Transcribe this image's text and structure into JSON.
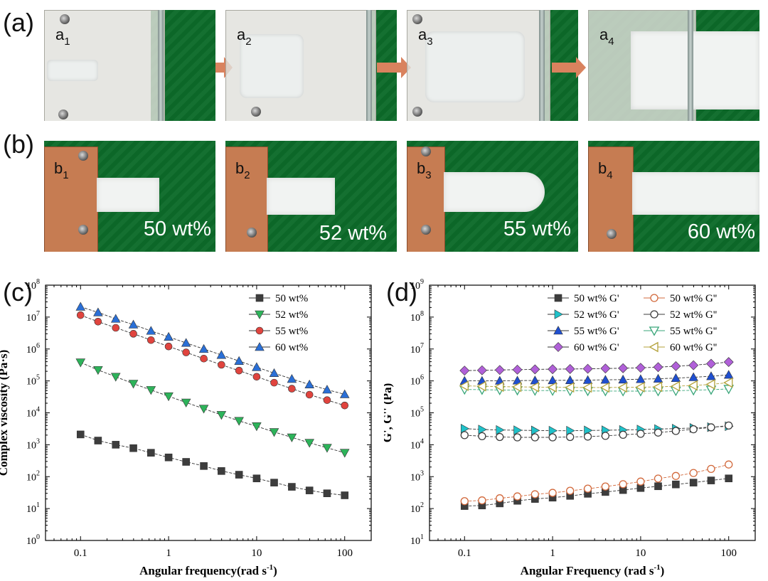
{
  "figure": {
    "panel_a_label": "(a)",
    "panel_b_label": "(b)",
    "panel_c_label": "(c)",
    "panel_d_label": "(d)"
  },
  "row_a": {
    "photos": [
      {
        "label": "a",
        "index": "1"
      },
      {
        "label": "a",
        "index": "2"
      },
      {
        "label": "a",
        "index": "3"
      },
      {
        "label": "a",
        "index": "4"
      }
    ]
  },
  "row_b": {
    "photos": [
      {
        "label": "b",
        "index": "1",
        "wt": "50 wt%"
      },
      {
        "label": "b",
        "index": "2",
        "wt": "52 wt%"
      },
      {
        "label": "b",
        "index": "3",
        "wt": "55 wt%"
      },
      {
        "label": "b",
        "index": "4",
        "wt": "60 wt%"
      }
    ]
  },
  "colors": {
    "black": "#3d3d3d",
    "green": "#2db35a",
    "red": "#e0443e",
    "blue": "#2a6fd6",
    "cyan": "#1fc1c9",
    "darkblue": "#1f4fd0",
    "purple": "#b060d8",
    "orange": "#d2693c",
    "olive": "#b3a13a",
    "seagreen": "#3aa67a",
    "arrow": "#d9825e"
  },
  "chart_data": [
    {
      "type": "scatter",
      "title": "",
      "xlabel": "Angular frequency(rad s",
      "xlabel_sup": "-1",
      "xlabel_end": ")",
      "ylabel": "Complex viscosity (Pa·s)",
      "xscale": "log",
      "yscale": "log",
      "xlim": [
        0.04,
        200
      ],
      "ylim": [
        1,
        100000000
      ],
      "x_ticks": [
        "0.1",
        "1",
        "10",
        "100"
      ],
      "y_ticks_exp": [
        "0",
        "1",
        "2",
        "3",
        "4",
        "5",
        "6",
        "7",
        "8"
      ],
      "legend_position": "top-right",
      "x": [
        0.1,
        0.158,
        0.251,
        0.398,
        0.631,
        1,
        1.58,
        2.51,
        3.98,
        6.31,
        10,
        15.8,
        25.1,
        39.8,
        63.1,
        100
      ],
      "series": [
        {
          "name": "50 wt%",
          "marker": "square",
          "filled": true,
          "color": "#3d3d3d",
          "values": [
            2100,
            1350,
            1000,
            780,
            560,
            400,
            290,
            215,
            150,
            115,
            88,
            65,
            48,
            37,
            30,
            26
          ]
        },
        {
          "name": "52 wt%",
          "marker": "triangle-down",
          "filled": true,
          "color": "#2db35a",
          "values": [
            380000,
            220000,
            135000,
            82000,
            52000,
            33000,
            21000,
            13500,
            8600,
            5600,
            3800,
            2500,
            1700,
            1150,
            800,
            560
          ]
        },
        {
          "name": "55 wt%",
          "marker": "circle",
          "filled": true,
          "color": "#e0443e",
          "values": [
            11500000,
            7200000,
            4600000,
            3000000,
            1900000,
            1200000,
            780000,
            500000,
            320000,
            210000,
            135000,
            88000,
            57000,
            37000,
            25000,
            17000
          ]
        },
        {
          "name": "60 wt%",
          "marker": "triangle-up",
          "filled": true,
          "color": "#2a6fd6",
          "values": [
            21000000,
            14000000,
            8800000,
            5800000,
            3700000,
            2400000,
            1550000,
            1000000,
            650000,
            420000,
            270000,
            175000,
            115000,
            77000,
            53000,
            38000
          ]
        }
      ]
    },
    {
      "type": "scatter",
      "title": "",
      "xlabel": "Angular Frequency (rad s",
      "xlabel_sup": "-1",
      "xlabel_end": ")",
      "ylabel": "G', G'' (Pa)",
      "xscale": "log",
      "yscale": "log",
      "xlim": [
        0.04,
        200
      ],
      "ylim": [
        10,
        1000000000
      ],
      "x_ticks": [
        "0.1",
        "1",
        "10",
        "100"
      ],
      "y_ticks_exp": [
        "1",
        "2",
        "3",
        "4",
        "5",
        "6",
        "7",
        "8",
        "9"
      ],
      "legend_position": "top-right",
      "x": [
        0.1,
        0.158,
        0.251,
        0.398,
        0.631,
        1,
        1.58,
        2.51,
        3.98,
        6.31,
        10,
        15.8,
        25.1,
        39.8,
        63.1,
        100
      ],
      "series": [
        {
          "name": "50 wt% G'",
          "marker": "square",
          "filled": true,
          "color": "#3d3d3d",
          "values": [
            120,
            125,
            145,
            175,
            200,
            220,
            250,
            290,
            330,
            380,
            440,
            500,
            570,
            650,
            760,
            880
          ]
        },
        {
          "name": "50 wt% G''",
          "marker": "circle",
          "filled": false,
          "color": "#d2693c",
          "values": [
            170,
            180,
            210,
            240,
            280,
            310,
            360,
            420,
            490,
            580,
            700,
            870,
            1050,
            1300,
            1750,
            2400
          ]
        },
        {
          "name": "52 wt% G'",
          "marker": "triangle-right",
          "filled": true,
          "color": "#1fc1c9",
          "values": [
            32000,
            30000,
            29000,
            28500,
            28000,
            27500,
            27500,
            28000,
            28500,
            29000,
            30000,
            31000,
            32000,
            33500,
            35500,
            38000
          ]
        },
        {
          "name": "52 wt% G''",
          "marker": "circle",
          "filled": false,
          "color": "#3d3d3d",
          "values": [
            20000,
            18500,
            17500,
            17000,
            17000,
            17000,
            17500,
            18000,
            19000,
            20500,
            22000,
            24000,
            27000,
            30500,
            35000,
            40000
          ]
        },
        {
          "name": "55 wt% G'",
          "marker": "triangle-up",
          "filled": true,
          "color": "#1f4fd0",
          "values": [
            1000000,
            1000000,
            1010000,
            1020000,
            1030000,
            1040000,
            1050000,
            1060000,
            1080000,
            1100000,
            1130000,
            1170000,
            1220000,
            1300000,
            1400000,
            1550000
          ]
        },
        {
          "name": "55 wt% G''",
          "marker": "triangle-down",
          "filled": false,
          "color": "#3aa67a",
          "values": [
            540000,
            530000,
            520000,
            510000,
            500000,
            495000,
            490000,
            485000,
            480000,
            478000,
            478000,
            480000,
            490000,
            510000,
            530000,
            560000
          ]
        },
        {
          "name": "60 wt% G'",
          "marker": "diamond",
          "filled": true,
          "color": "#b060d8",
          "values": [
            2100000,
            2150000,
            2200000,
            2250000,
            2300000,
            2330000,
            2360000,
            2400000,
            2450000,
            2500000,
            2580000,
            2700000,
            2900000,
            3100000,
            3450000,
            3900000
          ]
        },
        {
          "name": "60 wt% G''",
          "marker": "triangle-left",
          "filled": false,
          "color": "#b3a13a",
          "values": [
            700000,
            680000,
            660000,
            650000,
            640000,
            630000,
            625000,
            620000,
            620000,
            625000,
            635000,
            650000,
            680000,
            720000,
            780000,
            880000
          ]
        }
      ]
    }
  ]
}
